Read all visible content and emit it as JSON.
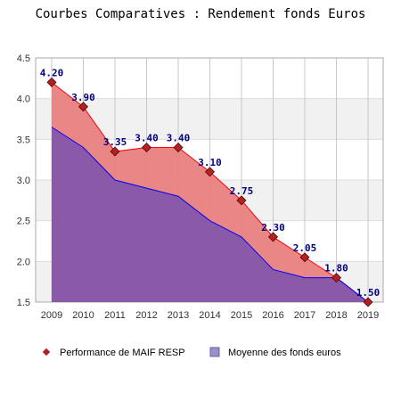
{
  "chart_data": {
    "type": "area",
    "title": "Courbes Comparatives : Rendement fonds Euros",
    "categories": [
      "2009",
      "2010",
      "2011",
      "2012",
      "2013",
      "2014",
      "2015",
      "2016",
      "2017",
      "2018",
      "2019"
    ],
    "series": [
      {
        "name": "Performance de MAIF RESP",
        "values": [
          4.2,
          3.9,
          3.35,
          3.4,
          3.4,
          3.1,
          2.75,
          2.3,
          2.05,
          1.8,
          1.5
        ],
        "data_labels": [
          "4.20",
          "3.90",
          "3.35",
          "3.40",
          "3.40",
          "3.10",
          "2.75",
          "2.30",
          "2.05",
          "1.80",
          "1.50"
        ],
        "color": "#e88080",
        "line_color": "#ff0000",
        "marker_color": "#b22222"
      },
      {
        "name": "Moyenne des fonds euros",
        "values": [
          3.65,
          3.4,
          3.0,
          2.9,
          2.8,
          2.5,
          2.3,
          1.9,
          1.8,
          1.8,
          1.5
        ],
        "color": "#8a5aa8",
        "line_color": "#0000ff"
      }
    ],
    "ylim": [
      1.5,
      4.5
    ],
    "yticks": [
      "1.5",
      "2.0",
      "2.5",
      "3.0",
      "3.5",
      "4.0",
      "4.5"
    ],
    "grid": true,
    "legend_position": "bottom"
  }
}
